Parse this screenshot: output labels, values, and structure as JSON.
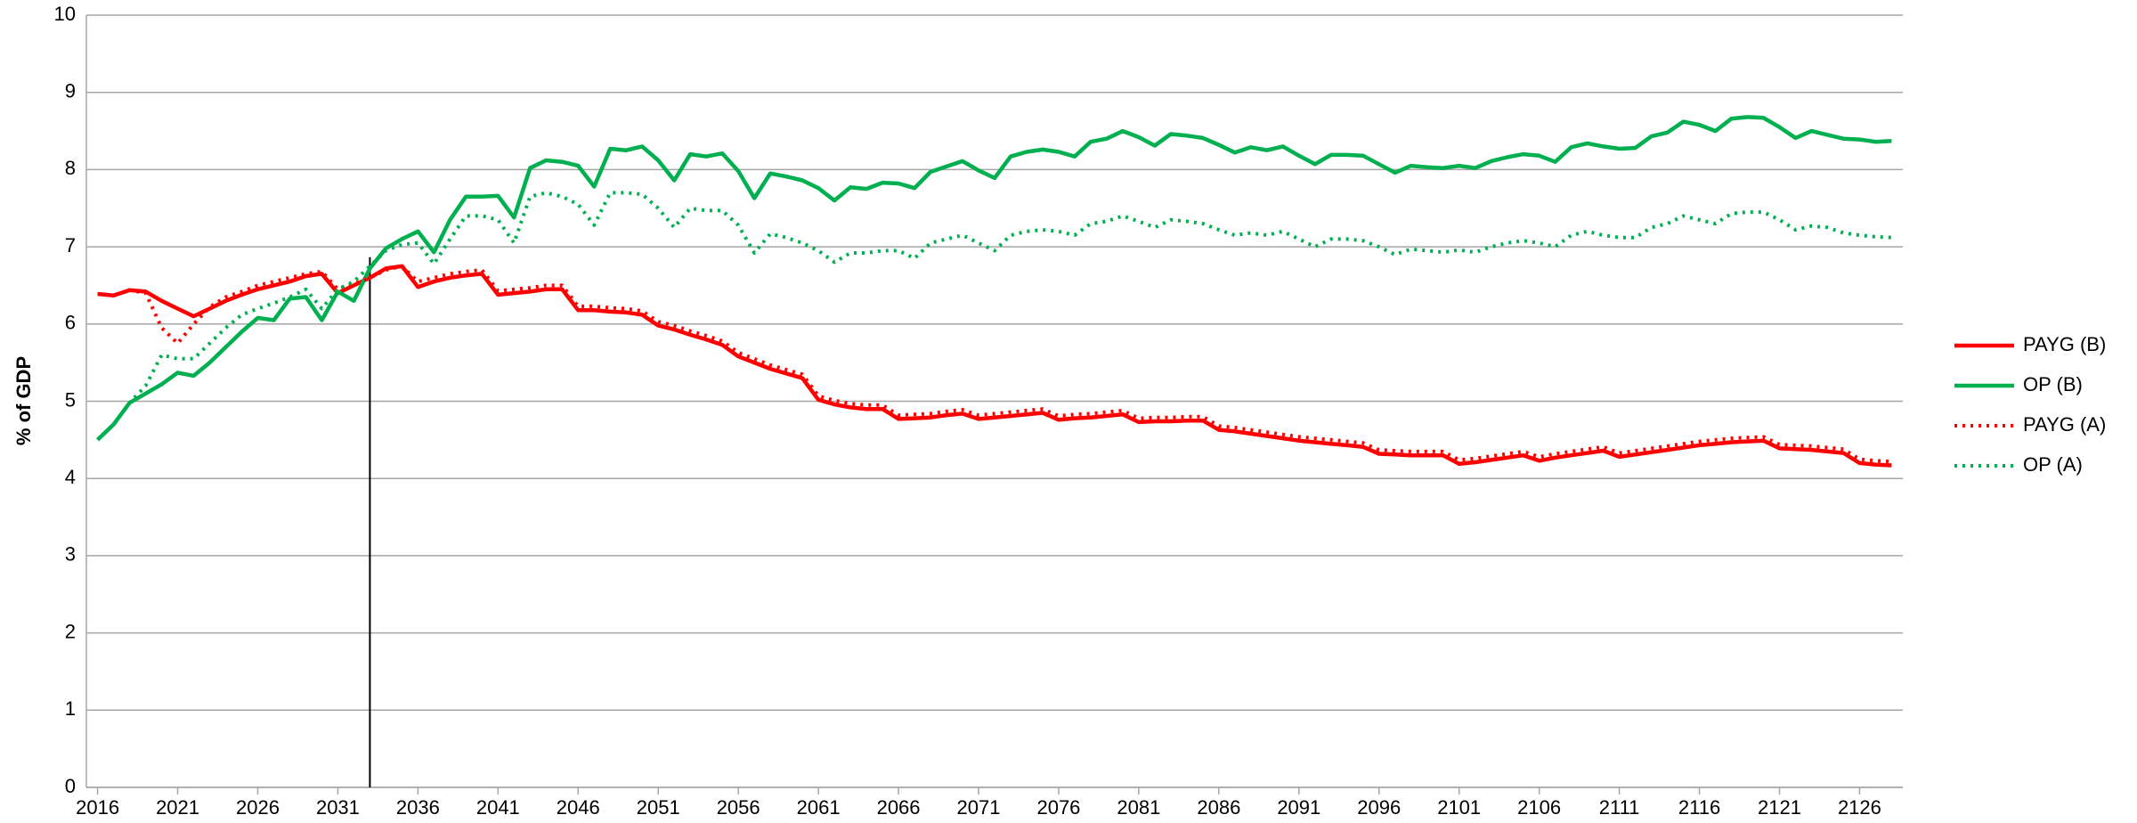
{
  "chart_data": {
    "type": "line",
    "y_label": "% of GDP",
    "x": [
      2016,
      2017,
      2018,
      2019,
      2020,
      2021,
      2022,
      2023,
      2024,
      2025,
      2026,
      2027,
      2028,
      2029,
      2030,
      2031,
      2032,
      2033,
      2034,
      2035,
      2036,
      2037,
      2038,
      2039,
      2040,
      2041,
      2042,
      2043,
      2044,
      2045,
      2046,
      2047,
      2048,
      2049,
      2050,
      2051,
      2052,
      2053,
      2054,
      2055,
      2056,
      2057,
      2058,
      2059,
      2060,
      2061,
      2062,
      2063,
      2064,
      2065,
      2066,
      2067,
      2068,
      2069,
      2070,
      2071,
      2072,
      2073,
      2074,
      2075,
      2076,
      2077,
      2078,
      2079,
      2080,
      2081,
      2082,
      2083,
      2084,
      2085,
      2086,
      2087,
      2088,
      2089,
      2090,
      2091,
      2092,
      2093,
      2094,
      2095,
      2096,
      2097,
      2098,
      2099,
      2100,
      2101,
      2102,
      2103,
      2104,
      2105,
      2106,
      2107,
      2108,
      2109,
      2110,
      2111,
      2112,
      2113,
      2114,
      2115,
      2116,
      2117,
      2118,
      2119,
      2120,
      2121,
      2122,
      2123,
      2124,
      2125,
      2126,
      2127,
      2128
    ],
    "series": [
      {
        "name": "PAYG (B)",
        "color": "#ff0000",
        "dash": false,
        "values": [
          6.39,
          6.37,
          6.44,
          6.42,
          6.3,
          6.2,
          6.1,
          6.2,
          6.3,
          6.38,
          6.45,
          6.5,
          6.55,
          6.62,
          6.65,
          6.4,
          6.5,
          6.6,
          6.72,
          6.75,
          6.48,
          6.55,
          6.6,
          6.63,
          6.65,
          6.38,
          6.4,
          6.42,
          6.45,
          6.45,
          6.18,
          6.18,
          6.16,
          6.15,
          6.12,
          5.98,
          5.93,
          5.86,
          5.8,
          5.73,
          5.58,
          5.5,
          5.42,
          5.36,
          5.3,
          5.02,
          4.96,
          4.92,
          4.9,
          4.9,
          4.77,
          4.78,
          4.79,
          4.82,
          4.84,
          4.77,
          4.79,
          4.81,
          4.83,
          4.85,
          4.76,
          4.78,
          4.79,
          4.81,
          4.83,
          4.73,
          4.74,
          4.74,
          4.75,
          4.75,
          4.63,
          4.61,
          4.58,
          4.55,
          4.52,
          4.49,
          4.47,
          4.45,
          4.43,
          4.41,
          4.32,
          4.31,
          4.3,
          4.3,
          4.3,
          4.19,
          4.21,
          4.24,
          4.27,
          4.3,
          4.23,
          4.27,
          4.3,
          4.33,
          4.36,
          4.28,
          4.31,
          4.34,
          4.37,
          4.4,
          4.43,
          4.45,
          4.47,
          4.48,
          4.49,
          4.39,
          4.38,
          4.37,
          4.35,
          4.33,
          4.2,
          4.18,
          4.17
        ]
      },
      {
        "name": "OP (B)",
        "color": "#00b050",
        "dash": false,
        "values": [
          4.5,
          4.7,
          4.98,
          5.1,
          5.22,
          5.37,
          5.33,
          5.5,
          5.7,
          5.9,
          6.08,
          6.05,
          6.33,
          6.35,
          6.05,
          6.42,
          6.3,
          6.72,
          6.98,
          7.1,
          7.2,
          6.93,
          7.35,
          7.65,
          7.65,
          7.66,
          7.38,
          8.02,
          8.12,
          8.1,
          8.05,
          7.78,
          8.27,
          8.25,
          8.3,
          8.12,
          7.86,
          8.2,
          8.17,
          8.21,
          7.98,
          7.63,
          7.95,
          7.91,
          7.86,
          7.76,
          7.6,
          7.77,
          7.75,
          7.83,
          7.82,
          7.76,
          7.97,
          8.04,
          8.11,
          7.99,
          7.89,
          8.17,
          8.23,
          8.26,
          8.23,
          8.17,
          8.36,
          8.4,
          8.5,
          8.42,
          8.31,
          8.46,
          8.44,
          8.41,
          8.32,
          8.22,
          8.29,
          8.25,
          8.3,
          8.18,
          8.07,
          8.19,
          8.19,
          8.18,
          8.07,
          7.96,
          8.05,
          8.03,
          8.02,
          8.05,
          8.02,
          8.11,
          8.16,
          8.2,
          8.18,
          8.1,
          8.29,
          8.34,
          8.3,
          8.27,
          8.28,
          8.43,
          8.48,
          8.62,
          8.58,
          8.5,
          8.66,
          8.68,
          8.67,
          8.55,
          8.41,
          8.5,
          8.45,
          8.4,
          8.39,
          8.36,
          8.37
        ]
      },
      {
        "name": "PAYG (A)",
        "color": "#ff0000",
        "dash": true,
        "values": [
          6.39,
          6.37,
          6.44,
          6.4,
          5.95,
          5.75,
          6.0,
          6.22,
          6.35,
          6.42,
          6.5,
          6.55,
          6.6,
          6.65,
          6.68,
          6.45,
          6.52,
          6.6,
          6.7,
          6.75,
          6.55,
          6.6,
          6.65,
          6.68,
          6.7,
          6.43,
          6.45,
          6.47,
          6.5,
          6.5,
          6.23,
          6.23,
          6.21,
          6.2,
          6.17,
          6.03,
          5.98,
          5.91,
          5.85,
          5.78,
          5.63,
          5.55,
          5.47,
          5.41,
          5.35,
          5.07,
          5.01,
          4.97,
          4.95,
          4.95,
          4.82,
          4.83,
          4.84,
          4.87,
          4.89,
          4.82,
          4.84,
          4.86,
          4.88,
          4.9,
          4.81,
          4.83,
          4.84,
          4.86,
          4.88,
          4.78,
          4.79,
          4.79,
          4.8,
          4.8,
          4.68,
          4.66,
          4.63,
          4.6,
          4.57,
          4.54,
          4.52,
          4.5,
          4.48,
          4.46,
          4.37,
          4.36,
          4.35,
          4.35,
          4.35,
          4.24,
          4.26,
          4.29,
          4.32,
          4.35,
          4.28,
          4.32,
          4.35,
          4.38,
          4.41,
          4.33,
          4.36,
          4.39,
          4.42,
          4.45,
          4.48,
          4.5,
          4.52,
          4.53,
          4.54,
          4.44,
          4.43,
          4.42,
          4.4,
          4.38,
          4.25,
          4.23,
          4.22
        ]
      },
      {
        "name": "OP (A)",
        "color": "#00b050",
        "dash": true,
        "values": [
          4.5,
          4.7,
          4.98,
          5.2,
          5.6,
          5.55,
          5.55,
          5.75,
          5.95,
          6.12,
          6.2,
          6.27,
          6.35,
          6.45,
          6.2,
          6.45,
          6.55,
          6.75,
          6.95,
          7.03,
          7.05,
          6.78,
          7.1,
          7.4,
          7.4,
          7.35,
          7.05,
          7.65,
          7.7,
          7.65,
          7.55,
          7.28,
          7.7,
          7.7,
          7.68,
          7.5,
          7.25,
          7.5,
          7.47,
          7.47,
          7.28,
          6.92,
          7.17,
          7.12,
          7.05,
          6.95,
          6.8,
          6.92,
          6.92,
          6.95,
          6.95,
          6.85,
          7.05,
          7.1,
          7.15,
          7.05,
          6.95,
          7.15,
          7.2,
          7.22,
          7.2,
          7.15,
          7.3,
          7.33,
          7.4,
          7.33,
          7.25,
          7.35,
          7.33,
          7.3,
          7.22,
          7.15,
          7.18,
          7.15,
          7.2,
          7.1,
          7.0,
          7.1,
          7.1,
          7.08,
          7.0,
          6.9,
          6.97,
          6.95,
          6.93,
          6.96,
          6.93,
          7.0,
          7.05,
          7.08,
          7.05,
          7.0,
          7.15,
          7.2,
          7.15,
          7.12,
          7.12,
          7.25,
          7.3,
          7.4,
          7.35,
          7.3,
          7.43,
          7.45,
          7.45,
          7.35,
          7.22,
          7.27,
          7.25,
          7.18,
          7.15,
          7.13,
          7.12
        ]
      }
    ],
    "xlim": [
      2015.3,
      2128.7
    ],
    "xticks": [
      2016,
      2021,
      2026,
      2031,
      2036,
      2041,
      2046,
      2051,
      2056,
      2061,
      2066,
      2071,
      2076,
      2081,
      2086,
      2091,
      2096,
      2101,
      2106,
      2111,
      2116,
      2121,
      2126
    ],
    "ylim": [
      0,
      10
    ],
    "yticks": [
      0,
      1,
      2,
      3,
      4,
      5,
      6,
      7,
      8,
      9,
      10
    ],
    "grid": true,
    "vline_x": 2033,
    "legend": "right"
  }
}
